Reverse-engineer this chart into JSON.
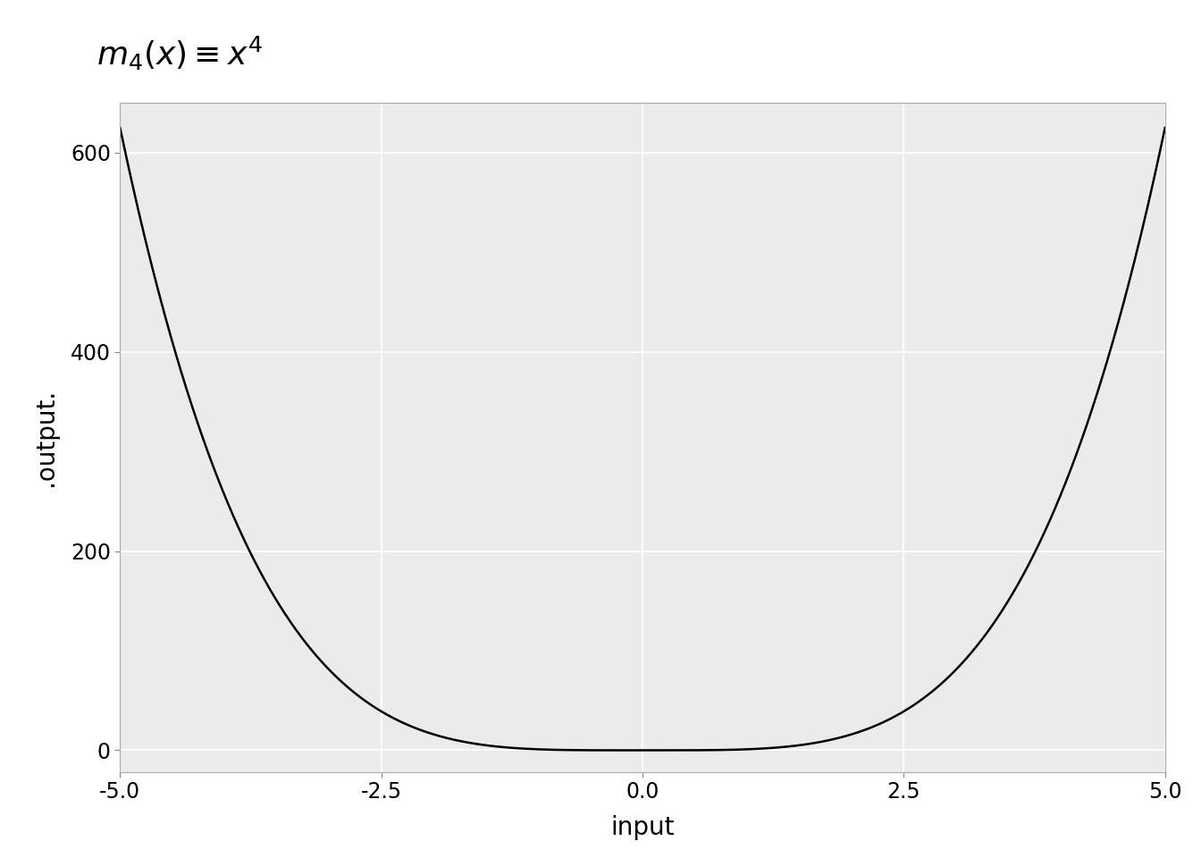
{
  "title": "$m_4(x) \\equiv x^4$",
  "xlabel": "input",
  "ylabel": ".output.",
  "xlim": [
    -5.0,
    5.0
  ],
  "ylim": [
    -22,
    650
  ],
  "xticks": [
    -5.0,
    -2.5,
    0.0,
    2.5,
    5.0
  ],
  "yticks": [
    0,
    200,
    400,
    600
  ],
  "power": 4,
  "x_start": -5.0,
  "x_end": 5.0,
  "num_points": 1000,
  "line_color": "#000000",
  "line_width": 1.8,
  "background_color": "#ffffff",
  "panel_background": "#ebebeb",
  "grid_color": "#ffffff",
  "title_fontsize": 26,
  "label_fontsize": 20,
  "tick_fontsize": 17
}
